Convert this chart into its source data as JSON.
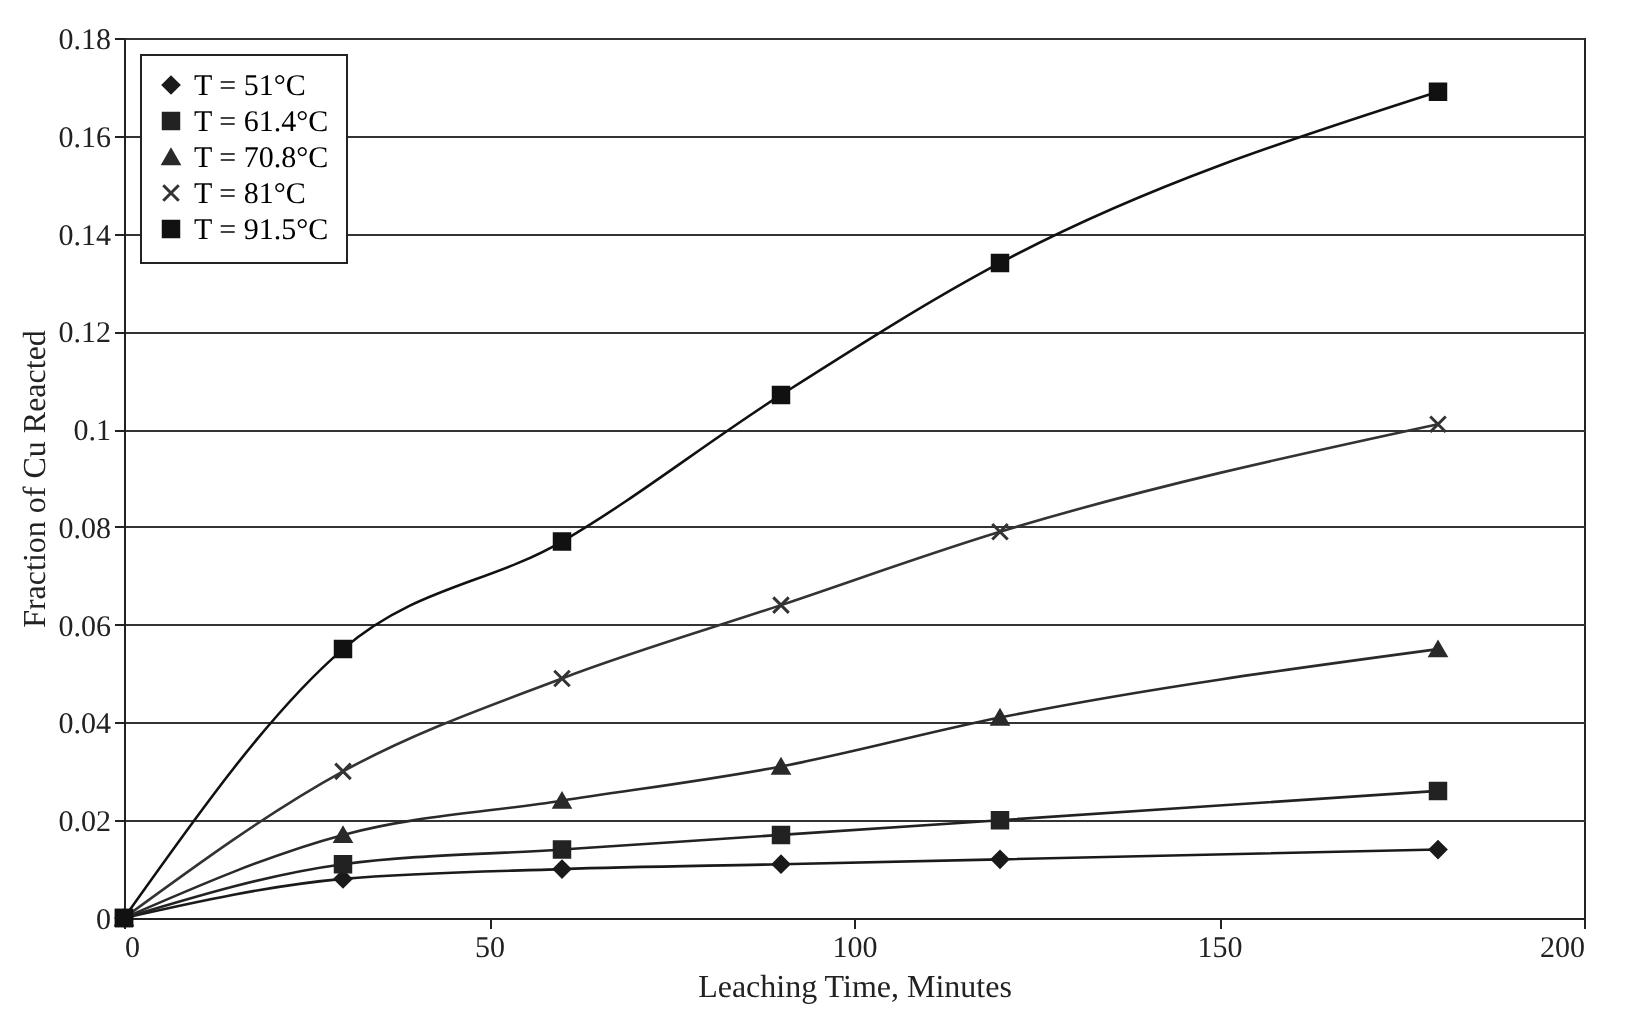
{
  "chart_data": {
    "type": "line",
    "xlabel": "Leaching Time, Minutes",
    "ylabel": "Fraction of Cu Reacted",
    "x": [
      0,
      30,
      60,
      90,
      120,
      180
    ],
    "series": [
      {
        "name": "T = 51°C",
        "color": "#1a1a1a",
        "marker": "diamond",
        "values": [
          0,
          0.008,
          0.01,
          0.011,
          0.012,
          0.014
        ]
      },
      {
        "name": "T = 61.4°C",
        "color": "#222222",
        "marker": "square",
        "values": [
          0,
          0.011,
          0.014,
          0.017,
          0.02,
          0.026
        ]
      },
      {
        "name": "T = 70.8°C",
        "color": "#2a2a2a",
        "marker": "triangle",
        "values": [
          0,
          0.017,
          0.024,
          0.031,
          0.041,
          0.055
        ]
      },
      {
        "name": "T = 81°C",
        "color": "#333333",
        "marker": "cross",
        "values": [
          0,
          0.03,
          0.049,
          0.064,
          0.079,
          0.101
        ]
      },
      {
        "name": "T = 91.5°C",
        "color": "#111111",
        "marker": "square",
        "values": [
          0,
          0.055,
          0.077,
          0.107,
          0.134,
          0.169
        ]
      }
    ],
    "xlim": [
      0,
      200
    ],
    "xticks": [
      0,
      50,
      100,
      150,
      200
    ],
    "ylim": [
      0,
      0.18
    ],
    "yticks": [
      0,
      0.02,
      0.04,
      0.06,
      0.08,
      0.1,
      0.12,
      0.14,
      0.16,
      0.18
    ],
    "grid": "y",
    "legend": "top left"
  }
}
